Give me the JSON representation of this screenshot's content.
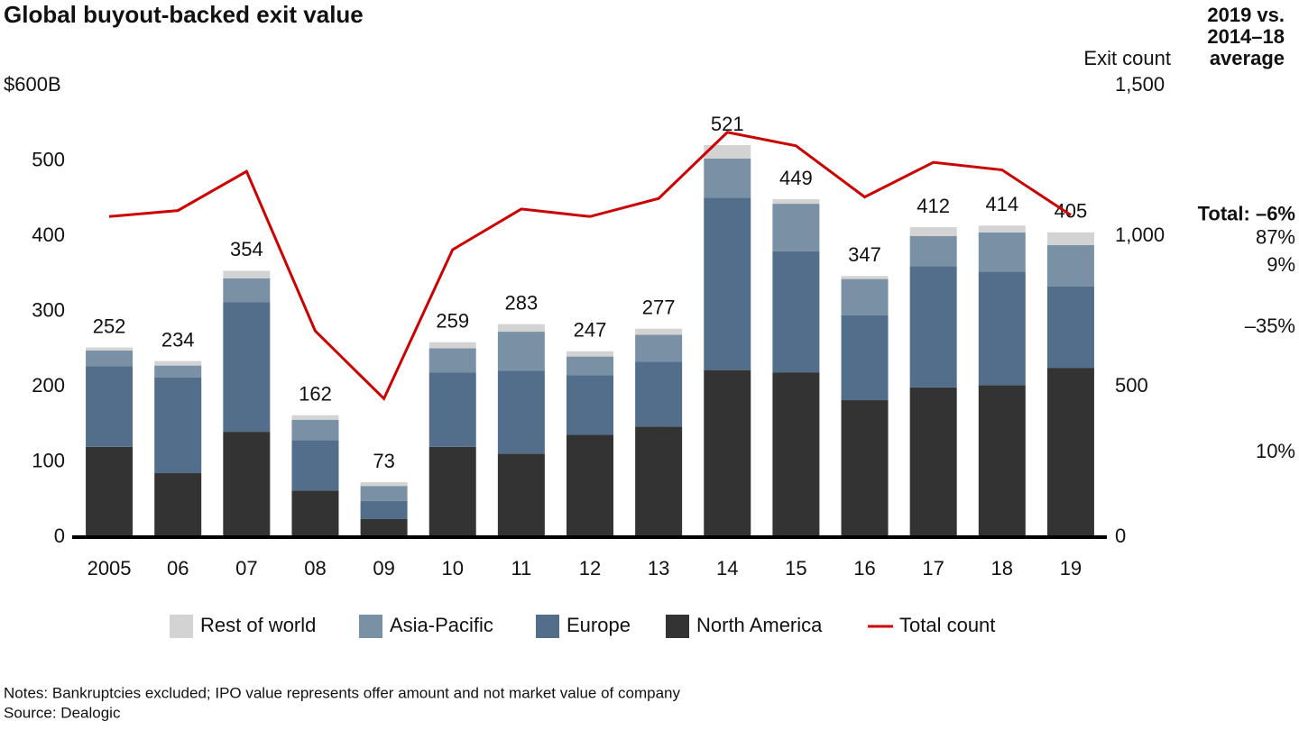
{
  "chart_data": {
    "type": "stacked-bar-line",
    "title": "Global buyout-backed exit value",
    "categories": [
      "2005",
      "06",
      "07",
      "08",
      "09",
      "10",
      "11",
      "12",
      "13",
      "14",
      "15",
      "16",
      "17",
      "18",
      "19"
    ],
    "series": [
      {
        "name": "North America",
        "color": "#333333",
        "values": [
          120,
          85,
          140,
          62,
          24,
          120,
          111,
          136,
          147,
          222,
          219,
          182,
          199,
          202,
          225
        ],
        "change": "10%"
      },
      {
        "name": "Europe",
        "color": "#536e8a",
        "values": [
          107,
          127,
          172,
          67,
          24,
          99,
          110,
          79,
          86,
          229,
          161,
          113,
          161,
          151,
          108
        ],
        "change": "–35%"
      },
      {
        "name": "Asia-Pacific",
        "color": "#7a90a5",
        "values": [
          21,
          16,
          32,
          27,
          20,
          32,
          52,
          25,
          36,
          52,
          63,
          48,
          40,
          52,
          55
        ],
        "change": "9%"
      },
      {
        "name": "Rest of world",
        "color": "#d3d3d3",
        "values": [
          4,
          6,
          10,
          6,
          5,
          8,
          10,
          7,
          8,
          18,
          6,
          4,
          12,
          9,
          17
        ],
        "change": "87%"
      },
      {
        "name": "Total count",
        "color": "#cc0000",
        "type": "line",
        "axis": "y2",
        "values": [
          1065,
          1085,
          1215,
          685,
          460,
          955,
          1090,
          1065,
          1125,
          1345,
          1300,
          1130,
          1245,
          1220,
          1070
        ],
        "change": "Total: –6%"
      }
    ],
    "totals": [
      252,
      234,
      354,
      162,
      73,
      259,
      283,
      247,
      277,
      521,
      449,
      347,
      412,
      414,
      405
    ],
    "ylim": [
      0,
      600
    ],
    "yticks": [
      0,
      100,
      200,
      300,
      400,
      500,
      {
        "value": 600,
        "label": "$600B"
      }
    ],
    "y2label": "Exit count",
    "y2lim": [
      0,
      1500
    ],
    "y2ticks": [
      0,
      500,
      {
        "value": 1000,
        "label": "1,000"
      },
      {
        "value": 1500,
        "label": "1,500"
      }
    ],
    "comparison_title": [
      "2019 vs.",
      "2014–18",
      "average"
    ],
    "notes": "Notes: Bankruptcies excluded; IPO value represents offer amount and not market value of company",
    "source": "Source: Dealogic"
  }
}
